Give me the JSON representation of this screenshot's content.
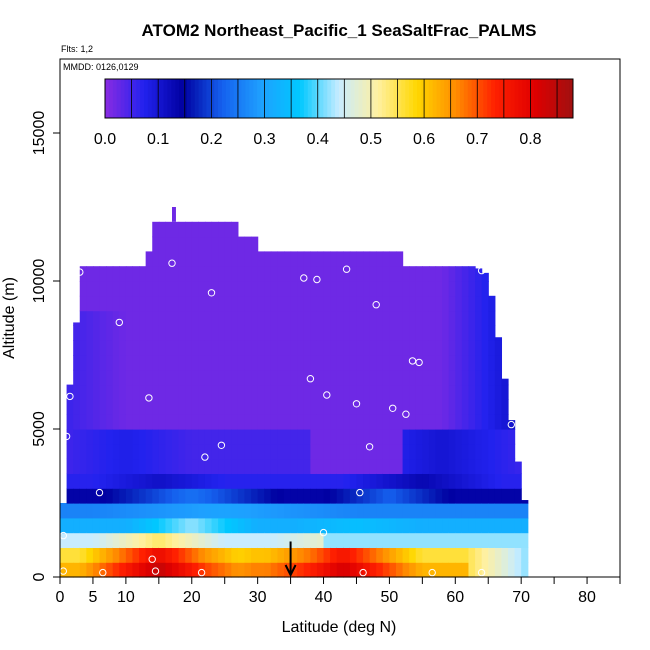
{
  "chart_data": {
    "type": "heatmap",
    "title": "ATOM2 Northeast_Pacific_1 SeaSaltFrac_PALMS",
    "annotations": [
      "Flts: 1,2",
      "MMDD: 0126,0129"
    ],
    "xlabel": "Latitude (deg N)",
    "ylabel": "Altitude (m)",
    "xlim": [
      0,
      85
    ],
    "ylim": [
      0,
      17500
    ],
    "x_ticks": [
      0,
      5,
      10,
      20,
      30,
      40,
      50,
      60,
      70,
      80
    ],
    "y_ticks": [
      0,
      5000,
      10000,
      15000
    ],
    "colorbar": {
      "min": 0.0,
      "max": 0.88,
      "ticks": [
        0.0,
        0.1,
        0.2,
        0.3,
        0.4,
        0.5,
        0.6,
        0.7,
        0.8
      ],
      "colors": [
        "#8a2be2",
        "#2222ee",
        "#0000a0",
        "#1560ee",
        "#1ea0ff",
        "#00c8ff",
        "#c8ecff",
        "#fff0a0",
        "#ffd700",
        "#ff8c00",
        "#ff2000",
        "#e00000",
        "#a01010"
      ]
    },
    "marker_arrow_latitude": 35,
    "sample_points": [
      {
        "lat": 3.0,
        "alt": 10300
      },
      {
        "lat": 17.0,
        "alt": 10600
      },
      {
        "lat": 23.0,
        "alt": 9600
      },
      {
        "lat": 37.0,
        "alt": 10100
      },
      {
        "lat": 39.0,
        "alt": 10050
      },
      {
        "lat": 43.5,
        "alt": 10400
      },
      {
        "lat": 48.0,
        "alt": 9200
      },
      {
        "lat": 64.0,
        "alt": 10350
      },
      {
        "lat": 9.0,
        "alt": 8600
      },
      {
        "lat": 38.0,
        "alt": 6700
      },
      {
        "lat": 53.5,
        "alt": 7300
      },
      {
        "lat": 54.5,
        "alt": 7250
      },
      {
        "lat": 1.5,
        "alt": 6100
      },
      {
        "lat": 13.5,
        "alt": 6050
      },
      {
        "lat": 40.5,
        "alt": 6150
      },
      {
        "lat": 45.0,
        "alt": 5850
      },
      {
        "lat": 50.5,
        "alt": 5700
      },
      {
        "lat": 52.5,
        "alt": 5500
      },
      {
        "lat": 68.5,
        "alt": 5150
      },
      {
        "lat": 1.0,
        "alt": 4750
      },
      {
        "lat": 24.5,
        "alt": 4450
      },
      {
        "lat": 47.0,
        "alt": 4400
      },
      {
        "lat": 22.0,
        "alt": 4050
      },
      {
        "lat": 6.0,
        "alt": 2850
      },
      {
        "lat": 45.5,
        "alt": 2850
      },
      {
        "lat": 0.5,
        "alt": 1400
      },
      {
        "lat": 40.0,
        "alt": 1500
      },
      {
        "lat": 14.0,
        "alt": 600
      },
      {
        "lat": 0.5,
        "alt": 200
      },
      {
        "lat": 6.5,
        "alt": 150
      },
      {
        "lat": 14.5,
        "alt": 200
      },
      {
        "lat": 21.5,
        "alt": 150
      },
      {
        "lat": 46.0,
        "alt": 150
      },
      {
        "lat": 56.5,
        "alt": 150
      },
      {
        "lat": 64.0,
        "alt": 150
      }
    ],
    "field_description": {
      "surface_layer_0_1000m": "0.6-0.85 (orange/red), max near 10-25 N and 35-50 N",
      "layer_1000_2500m": "0.3-0.55 (cyan/white/yellow)",
      "layer_2500_3500m": "0.1-0.3 (blue/cyan)",
      "above_3500m": "0.0-0.1 (purple/dark blue)",
      "data_top_altitude": 12000,
      "data_lat_range": [
        1,
        70
      ]
    }
  }
}
